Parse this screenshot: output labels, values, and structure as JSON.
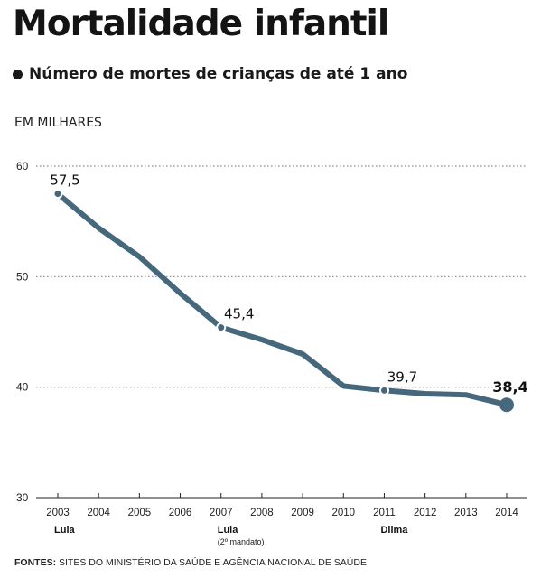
{
  "title": "Mortalidade infantil",
  "subtitle": "Número de mortes de crianças de até 1 ano",
  "unit_label": "EM MILHARES",
  "source": {
    "label": "FONTES:",
    "text": "SITES DO MINISTÉRIO DA SAÚDE E AGÊNCIA NACIONAL DE SAÚDE"
  },
  "colors": {
    "line": "#45687c",
    "grid": "#888888",
    "text": "#111111"
  },
  "chart_data": {
    "type": "line",
    "x": [
      2003,
      2004,
      2005,
      2006,
      2007,
      2008,
      2009,
      2010,
      2011,
      2012,
      2013,
      2014
    ],
    "x_tick_labels": [
      "2003",
      "2004",
      "2005",
      "2006",
      "2007",
      "2008",
      "2009",
      "2010",
      "2011",
      "2012",
      "2013",
      "2014"
    ],
    "values": [
      57.5,
      54.4,
      51.8,
      48.5,
      45.4,
      44.3,
      43.0,
      40.1,
      39.7,
      39.4,
      39.3,
      38.4
    ],
    "ylim": [
      30,
      60
    ],
    "y_ticks": [
      30,
      40,
      50,
      60
    ],
    "y_tick_labels": [
      "30",
      "40",
      "50",
      "60"
    ],
    "grid": "dotted horizontal",
    "data_labels": [
      {
        "x": 2003,
        "text": "57,5",
        "bold": false
      },
      {
        "x": 2007,
        "text": "45,4",
        "bold": false
      },
      {
        "x": 2011,
        "text": "39,7",
        "bold": false
      },
      {
        "x": 2014,
        "text": "38,4",
        "bold": true
      }
    ],
    "period_markers": [
      {
        "x": 2003,
        "label": "Lula",
        "note": ""
      },
      {
        "x": 2007,
        "label": "Lula",
        "note": "(2º mandato)"
      },
      {
        "x": 2011,
        "label": "Dilma",
        "note": ""
      }
    ]
  }
}
